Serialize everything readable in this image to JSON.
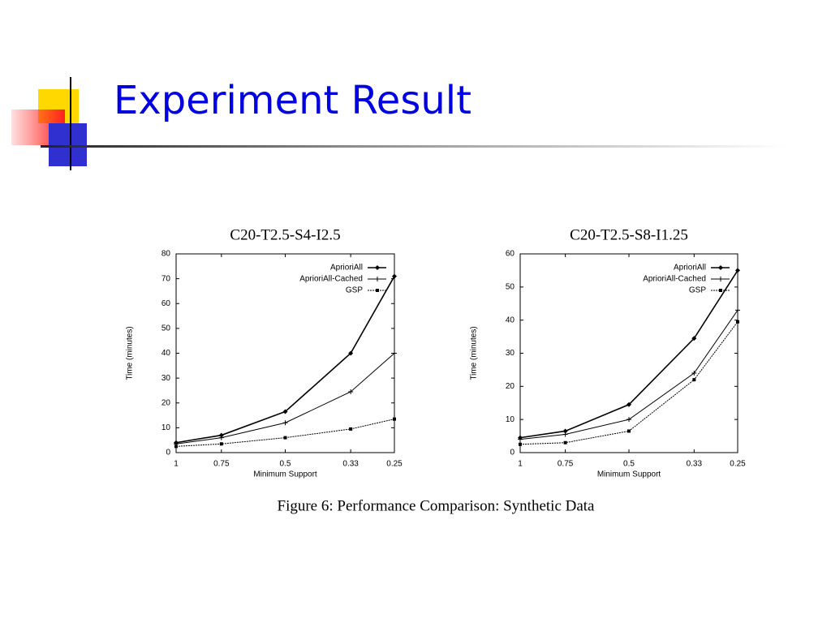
{
  "slide_title": "Experiment Result",
  "caption": "Figure 6: Performance Comparison: Synthetic Data",
  "chart_data": [
    {
      "type": "line",
      "title": "C20-T2.5-S4-I2.5",
      "x_label": "Minimum Support",
      "y_label": "Time (minutes)",
      "x": [
        1,
        0.75,
        0.5,
        0.33,
        0.25
      ],
      "xscale": "log",
      "xlim": [
        1,
        0.25
      ],
      "xticks": [
        1,
        0.75,
        0.5,
        0.33,
        0.25
      ],
      "ylim": [
        0,
        80
      ],
      "yticks": [
        0,
        10,
        20,
        30,
        40,
        50,
        60,
        70,
        80
      ],
      "legend": "upper right",
      "series": [
        {
          "name": "AprioriAll",
          "color": "#000000",
          "marker": "diamond",
          "values": [
            4,
            7,
            16.5,
            40,
            71
          ]
        },
        {
          "name": "AprioriAll-Cached",
          "color": "#000000",
          "marker": "plus",
          "values": [
            3.5,
            6,
            12,
            24.5,
            40
          ]
        },
        {
          "name": "GSP",
          "color": "#000000",
          "marker": "square",
          "values": [
            2.5,
            3.5,
            6,
            9.5,
            13.5
          ]
        }
      ]
    },
    {
      "type": "line",
      "title": "C20-T2.5-S8-I1.25",
      "x_label": "Minimum Support",
      "y_label": "Time (minutes)",
      "x": [
        1,
        0.75,
        0.5,
        0.33,
        0.25
      ],
      "xscale": "log",
      "xlim": [
        1,
        0.25
      ],
      "xticks": [
        1,
        0.75,
        0.5,
        0.33,
        0.25
      ],
      "ylim": [
        0,
        60
      ],
      "yticks": [
        0,
        10,
        20,
        30,
        40,
        50,
        60
      ],
      "legend": "upper right",
      "series": [
        {
          "name": "AprioriAll",
          "color": "#000000",
          "marker": "diamond",
          "values": [
            4.5,
            6.5,
            14.5,
            34.5,
            55
          ]
        },
        {
          "name": "AprioriAll-Cached",
          "color": "#000000",
          "marker": "plus",
          "values": [
            4,
            5.5,
            10,
            24,
            43
          ]
        },
        {
          "name": "GSP",
          "color": "#000000",
          "marker": "square",
          "values": [
            2.5,
            3,
            6.5,
            22,
            39.5
          ]
        }
      ]
    }
  ]
}
